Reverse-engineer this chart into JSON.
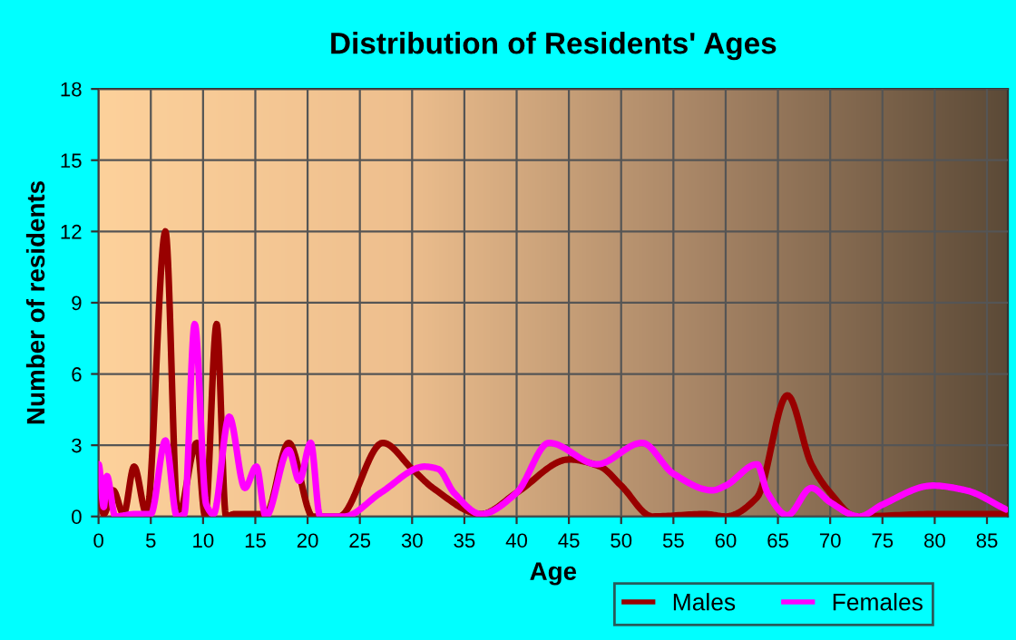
{
  "chart_data": {
    "type": "line",
    "title": "Distribution of Residents' Ages",
    "xlabel": "Age",
    "ylabel": "Number of residents",
    "xlim": [
      0,
      87
    ],
    "xticks": [
      0,
      5,
      10,
      15,
      20,
      25,
      30,
      35,
      40,
      45,
      50,
      55,
      60,
      65,
      70,
      75,
      80,
      85
    ],
    "ylim": [
      0,
      18
    ],
    "yticks": [
      0,
      3,
      6,
      9,
      12,
      15,
      18
    ],
    "grid": true,
    "legend": "bottom right",
    "marker": "none",
    "line_style": "solid",
    "series": [
      {
        "name": "Males",
        "color": "#990000",
        "x": [
          0,
          0.5,
          1.4,
          2.4,
          3.4,
          4.6,
          6.4,
          7.6,
          9.4,
          10.2,
          11.3,
          12.2,
          13,
          16,
          18.2,
          20.5,
          23,
          27.2,
          30,
          32,
          36.6,
          40,
          45,
          48,
          50,
          53,
          58,
          60,
          63,
          65.9,
          68.2,
          70,
          72.5,
          80,
          87
        ],
        "values": [
          1.0,
          0.1,
          1.1,
          0.1,
          2.1,
          0.1,
          12,
          0,
          3.1,
          0,
          8.1,
          0,
          0.1,
          0.1,
          3.1,
          0,
          0,
          3.1,
          2,
          1.2,
          0.1,
          1.0,
          2.4,
          2.1,
          1.3,
          0,
          0.1,
          0,
          0.8,
          5.1,
          2.2,
          1.0,
          0,
          0.1,
          0.1
        ]
      },
      {
        "name": "Females",
        "color": "#ff00ff",
        "x": [
          0,
          0.5,
          0.8,
          1.6,
          3.5,
          5,
          6.4,
          7.5,
          8.2,
          9.2,
          10.3,
          11,
          12.5,
          14,
          15.1,
          16,
          18.2,
          19.2,
          20.3,
          21.2,
          23.5,
          27,
          31.2,
          32.5,
          34,
          36.6,
          40,
          43.1,
          47.7,
          52,
          55,
          58.7,
          60,
          63,
          64,
          65.9,
          68.2,
          70,
          72.8,
          75,
          79.8,
          83,
          86.8
        ],
        "values": [
          2.2,
          0.4,
          1.7,
          0,
          0.1,
          0.1,
          3.2,
          0,
          0.1,
          8.1,
          0.5,
          0.1,
          4.2,
          1.2,
          2.1,
          0,
          2.8,
          1.5,
          3.1,
          0,
          0,
          1,
          2.1,
          2,
          1,
          0.1,
          1.0,
          3.1,
          2.2,
          3.1,
          1.8,
          1.1,
          1.3,
          2.2,
          1.0,
          0.05,
          1.2,
          0.6,
          0,
          0.5,
          1.3,
          1.1,
          0.3
        ]
      }
    ]
  }
}
